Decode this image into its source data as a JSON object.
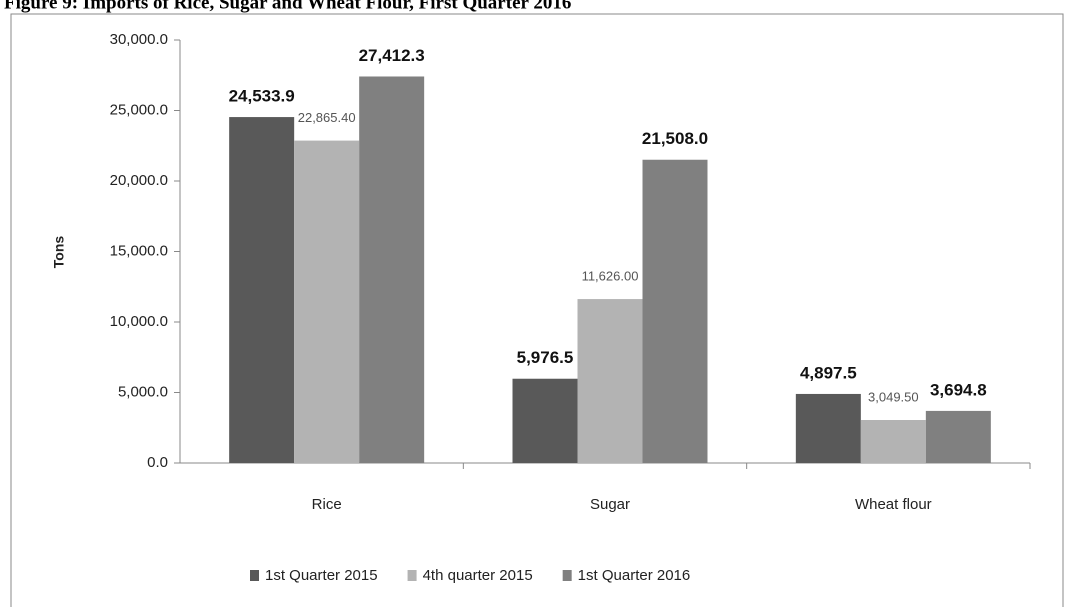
{
  "chart_data": {
    "type": "bar",
    "title": "Figure 9: Imports of Rice, Sugar and Wheat Flour, First Quarter 2016",
    "y_label": "Tons",
    "categories": [
      "Rice",
      "Sugar",
      "Wheat flour"
    ],
    "series": [
      {
        "name": "1st Quarter 2015",
        "color": "#595959",
        "values": [
          24533.9,
          5976.5,
          4897.5
        ],
        "value_labels": [
          "24,533.9",
          "5,976.5",
          "4,897.5"
        ]
      },
      {
        "name": "4th quarter 2015",
        "color": "#b3b3b3",
        "values": [
          22865.4,
          11626.0,
          3049.5
        ],
        "value_labels": [
          "22,865.40",
          "11,626.00",
          "3,049.50"
        ]
      },
      {
        "name": "1st Quarter 2016",
        "color": "#808080",
        "values": [
          27412.3,
          21508.0,
          3694.8
        ],
        "value_labels": [
          "27,412.3",
          "21,508.0",
          "3,694.8"
        ]
      }
    ],
    "ylim": [
      0,
      30000
    ],
    "yticks": [
      {
        "value": 0,
        "label": "0.0"
      },
      {
        "value": 5000,
        "label": "5,000.0"
      },
      {
        "value": 10000,
        "label": "10,000.0"
      },
      {
        "value": 15000,
        "label": "15,000.0"
      },
      {
        "value": 20000,
        "label": "20,000.0"
      },
      {
        "value": 25000,
        "label": "25,000.0"
      },
      {
        "value": 30000,
        "label": "30,000.0"
      }
    ],
    "legend": "bottom"
  }
}
